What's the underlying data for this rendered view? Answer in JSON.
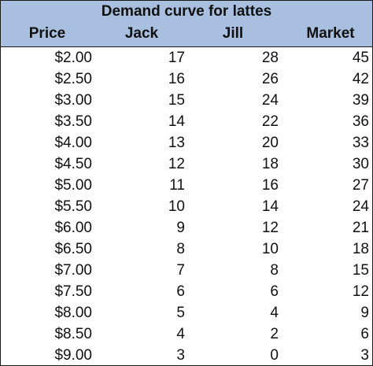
{
  "table": {
    "title": "Demand curve for lattes",
    "headers": {
      "price": "Price",
      "jack": "Jack",
      "jill": "Jill",
      "market": "Market"
    },
    "rows": [
      {
        "price": "$2.00",
        "jack": "17",
        "jill": "28",
        "market": "45"
      },
      {
        "price": "$2.50",
        "jack": "16",
        "jill": "26",
        "market": "42"
      },
      {
        "price": "$3.00",
        "jack": "15",
        "jill": "24",
        "market": "39"
      },
      {
        "price": "$3.50",
        "jack": "14",
        "jill": "22",
        "market": "36"
      },
      {
        "price": "$4.00",
        "jack": "13",
        "jill": "20",
        "market": "33"
      },
      {
        "price": "$4.50",
        "jack": "12",
        "jill": "18",
        "market": "30"
      },
      {
        "price": "$5.00",
        "jack": "11",
        "jill": "16",
        "market": "27"
      },
      {
        "price": "$5.50",
        "jack": "10",
        "jill": "14",
        "market": "24"
      },
      {
        "price": "$6.00",
        "jack": "9",
        "jill": "12",
        "market": "21"
      },
      {
        "price": "$6.50",
        "jack": "8",
        "jill": "10",
        "market": "18"
      },
      {
        "price": "$7.00",
        "jack": "7",
        "jill": "8",
        "market": "15"
      },
      {
        "price": "$7.50",
        "jack": "6",
        "jill": "6",
        "market": "12"
      },
      {
        "price": "$8.00",
        "jack": "5",
        "jill": "4",
        "market": "9"
      },
      {
        "price": "$8.50",
        "jack": "4",
        "jill": "2",
        "market": "6"
      },
      {
        "price": "$9.00",
        "jack": "3",
        "jill": "0",
        "market": "3"
      }
    ],
    "colors": {
      "header_fill": "#a9bfdf",
      "border": "#1a1a1a",
      "text": "#111111"
    }
  }
}
